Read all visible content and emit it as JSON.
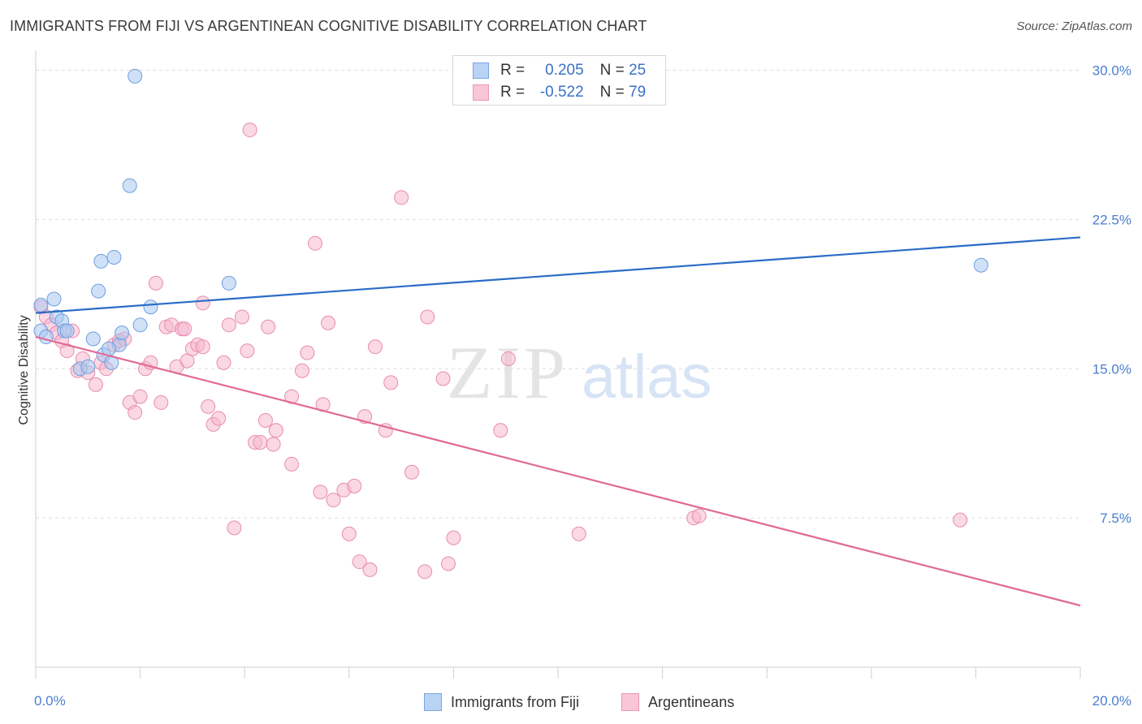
{
  "header": {
    "title": "IMMIGRANTS FROM FIJI VS ARGENTINEAN COGNITIVE DISABILITY CORRELATION CHART",
    "source": "Source: ZipAtlas.com"
  },
  "watermark": {
    "zip": "ZIP",
    "atlas": "atlas"
  },
  "legend_top": {
    "rows": [
      {
        "r_label": "R =",
        "r_value": "0.205",
        "n_label": "N =",
        "n_value": "25"
      },
      {
        "r_label": "R =",
        "r_value": "-0.522",
        "n_label": "N =",
        "n_value": "79"
      }
    ]
  },
  "legend_bottom": {
    "items": [
      {
        "label": "Immigrants from Fiji"
      },
      {
        "label": "Argentineans"
      }
    ]
  },
  "colors": {
    "fiji_fill": "#a9c8f0",
    "fiji_stroke": "#6f9fe0",
    "fiji_line": "#2a6cc6",
    "arg_fill": "#f6b8cd",
    "arg_stroke": "#e98cae",
    "arg_line": "#e06a96",
    "tick_label": "#4a7ed0",
    "grid": "#dddddd"
  },
  "chart_data": {
    "type": "scatter",
    "title": "IMMIGRANTS FROM FIJI VS ARGENTINEAN COGNITIVE DISABILITY CORRELATION CHART",
    "xlabel": "",
    "ylabel": "Cognitive Disability",
    "xlim": [
      0,
      20
    ],
    "ylim": [
      0,
      31
    ],
    "x_tick_labels": [
      {
        "value": 0,
        "label": "0.0%"
      },
      {
        "value": 20,
        "label": "20.0%"
      }
    ],
    "y_tick_labels": [
      {
        "value": 7.5,
        "label": "7.5%"
      },
      {
        "value": 15,
        "label": "15.0%"
      },
      {
        "value": 22.5,
        "label": "22.5%"
      },
      {
        "value": 30,
        "label": "30.0%"
      }
    ],
    "grid": true,
    "legend_position": "top-center",
    "series": [
      {
        "name": "Immigrants from Fiji",
        "R": 0.205,
        "N": 25,
        "trend": {
          "x": [
            0,
            20
          ],
          "y": [
            17.8,
            21.6
          ]
        },
        "points": [
          [
            0.1,
            18.2
          ],
          [
            0.1,
            16.9
          ],
          [
            0.2,
            16.6
          ],
          [
            0.35,
            18.5
          ],
          [
            0.4,
            17.6
          ],
          [
            0.5,
            17.4
          ],
          [
            0.55,
            16.9
          ],
          [
            0.6,
            16.9
          ],
          [
            0.85,
            15.0
          ],
          [
            1.0,
            15.1
          ],
          [
            1.1,
            16.5
          ],
          [
            1.2,
            18.9
          ],
          [
            1.25,
            20.4
          ],
          [
            1.3,
            15.7
          ],
          [
            1.45,
            15.3
          ],
          [
            1.5,
            20.6
          ],
          [
            1.6,
            16.2
          ],
          [
            1.65,
            16.8
          ],
          [
            1.8,
            24.2
          ],
          [
            1.9,
            29.7
          ],
          [
            2.0,
            17.2
          ],
          [
            2.2,
            18.1
          ],
          [
            3.7,
            19.3
          ],
          [
            18.1,
            20.2
          ],
          [
            1.4,
            16.0
          ]
        ]
      },
      {
        "name": "Argentineans",
        "R": -0.522,
        "N": 79,
        "trend": {
          "x": [
            0,
            20
          ],
          "y": [
            16.6,
            3.1
          ]
        },
        "points": [
          [
            0.1,
            18.1
          ],
          [
            0.2,
            17.6
          ],
          [
            0.3,
            17.2
          ],
          [
            0.4,
            16.8
          ],
          [
            0.5,
            16.4
          ],
          [
            0.6,
            15.9
          ],
          [
            0.7,
            16.9
          ],
          [
            0.8,
            14.9
          ],
          [
            0.9,
            15.5
          ],
          [
            1.0,
            14.8
          ],
          [
            1.15,
            14.2
          ],
          [
            1.25,
            15.3
          ],
          [
            1.35,
            15.0
          ],
          [
            1.5,
            16.2
          ],
          [
            1.6,
            16.4
          ],
          [
            1.7,
            16.5
          ],
          [
            1.8,
            13.3
          ],
          [
            1.9,
            12.8
          ],
          [
            2.0,
            13.6
          ],
          [
            2.1,
            15.0
          ],
          [
            2.2,
            15.3
          ],
          [
            2.3,
            19.3
          ],
          [
            2.4,
            13.3
          ],
          [
            2.5,
            17.1
          ],
          [
            2.6,
            17.2
          ],
          [
            2.7,
            15.1
          ],
          [
            2.8,
            17.0
          ],
          [
            2.9,
            15.4
          ],
          [
            3.0,
            16.0
          ],
          [
            3.1,
            16.2
          ],
          [
            3.2,
            18.3
          ],
          [
            3.3,
            13.1
          ],
          [
            3.4,
            12.2
          ],
          [
            3.5,
            12.5
          ],
          [
            3.6,
            15.3
          ],
          [
            3.7,
            17.2
          ],
          [
            3.8,
            7.0
          ],
          [
            3.95,
            17.6
          ],
          [
            4.05,
            15.9
          ],
          [
            4.1,
            27.0
          ],
          [
            4.2,
            11.3
          ],
          [
            4.3,
            11.3
          ],
          [
            4.4,
            12.4
          ],
          [
            4.45,
            17.1
          ],
          [
            4.55,
            11.2
          ],
          [
            4.6,
            11.9
          ],
          [
            4.9,
            10.2
          ],
          [
            5.1,
            14.9
          ],
          [
            5.2,
            15.8
          ],
          [
            5.35,
            21.3
          ],
          [
            5.45,
            8.8
          ],
          [
            5.6,
            17.3
          ],
          [
            5.7,
            8.4
          ],
          [
            5.9,
            8.9
          ],
          [
            6.0,
            6.7
          ],
          [
            6.1,
            9.1
          ],
          [
            6.2,
            5.3
          ],
          [
            6.3,
            12.6
          ],
          [
            6.4,
            4.9
          ],
          [
            6.5,
            16.1
          ],
          [
            6.7,
            11.9
          ],
          [
            6.8,
            14.3
          ],
          [
            7.0,
            23.6
          ],
          [
            7.2,
            9.8
          ],
          [
            7.45,
            4.8
          ],
          [
            7.5,
            17.6
          ],
          [
            7.8,
            14.5
          ],
          [
            7.9,
            5.2
          ],
          [
            8.0,
            6.5
          ],
          [
            8.9,
            11.9
          ],
          [
            9.05,
            15.5
          ],
          [
            10.4,
            6.7
          ],
          [
            12.6,
            7.5
          ],
          [
            12.7,
            7.6
          ],
          [
            17.7,
            7.4
          ],
          [
            3.2,
            16.1
          ],
          [
            2.85,
            17.0
          ],
          [
            4.9,
            13.6
          ],
          [
            5.5,
            13.2
          ]
        ]
      }
    ]
  }
}
